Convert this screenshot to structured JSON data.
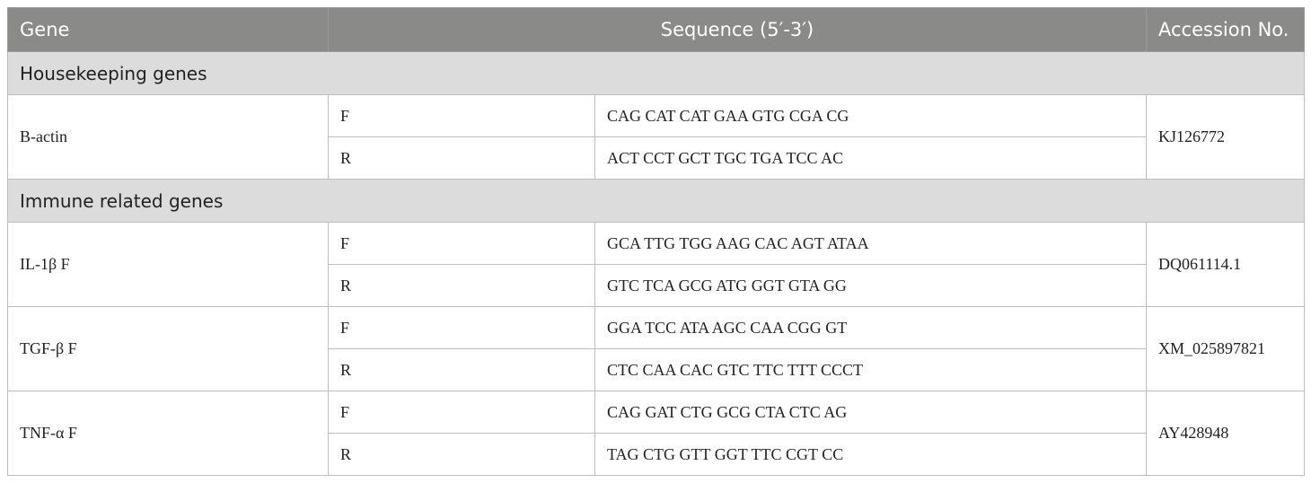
{
  "header": {
    "gene": "Gene",
    "sequence": "Sequence (5′-3′)",
    "accession": "Accession No."
  },
  "sections": [
    {
      "title": "Housekeeping genes",
      "genes": [
        {
          "name": "B-actin",
          "accession": "KJ126772",
          "primers": [
            {
              "dir": "F",
              "seq": "CAG CAT CAT GAA GTG CGA CG"
            },
            {
              "dir": "R",
              "seq": "ACT CCT GCT TGC TGA TCC AC"
            }
          ]
        }
      ]
    },
    {
      "title": "Immune related genes",
      "genes": [
        {
          "name": "IL-1β F",
          "accession": "DQ061114.1",
          "primers": [
            {
              "dir": "F",
              "seq": "GCA TTG TGG AAG CAC AGT ATAA"
            },
            {
              "dir": "R",
              "seq": "GTC TCA GCG ATG GGT GTA GG"
            }
          ]
        },
        {
          "name": "TGF-β F",
          "accession": "XM_025897821",
          "primers": [
            {
              "dir": "F",
              "seq": "GGA TCC ATA AGC CAA CGG GT"
            },
            {
              "dir": "R",
              "seq": "CTC CAA CAC GTC TTC TTT CCCT"
            }
          ]
        },
        {
          "name": "TNF-α F",
          "accession": "AY428948",
          "primers": [
            {
              "dir": "F",
              "seq": "CAG GAT CTG GCG CTA CTC AG"
            },
            {
              "dir": "R",
              "seq": "TAG CTG GTT GGT TTC CGT CC"
            }
          ]
        }
      ]
    }
  ]
}
